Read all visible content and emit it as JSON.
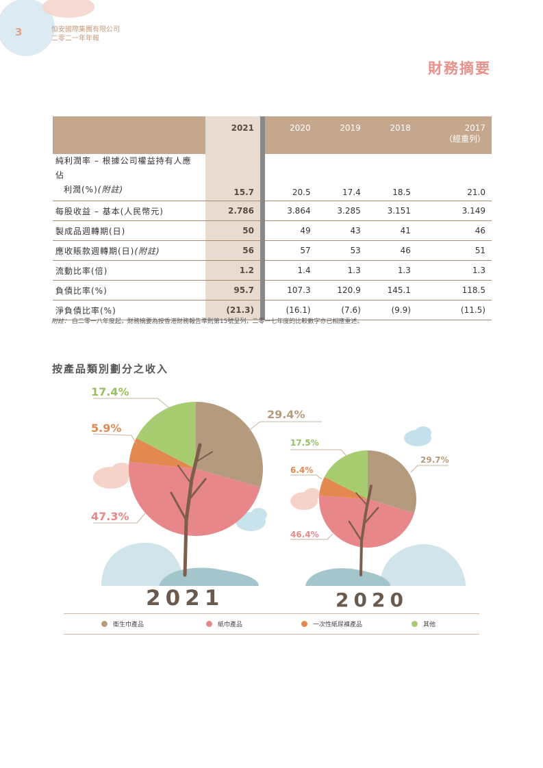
{
  "header": {
    "page_number": "3",
    "company": "恒安國際集團有限公司",
    "report": "二零二一年年報",
    "title": "財務摘要"
  },
  "table": {
    "headers": [
      "2021",
      "2020",
      "2019",
      "2018",
      "2017"
    ],
    "restated": "（經重列）",
    "rows": [
      {
        "label1": "純利潤率 – 根據公司權益持有人應佔",
        "label2": "利潤(%)",
        "note": "(附註)",
        "values": [
          "15.7",
          "20.5",
          "17.4",
          "18.5",
          "21.0"
        ]
      },
      {
        "label1": "每股收益 – 基本(人民幣元)",
        "values": [
          "2.786",
          "3.864",
          "3.285",
          "3.151",
          "3.149"
        ]
      },
      {
        "label1": "製成品週轉期(日)",
        "values": [
          "50",
          "49",
          "43",
          "41",
          "46"
        ]
      },
      {
        "label1": "應收賬款週轉期(日)",
        "note": "(附註)",
        "values": [
          "56",
          "57",
          "53",
          "46",
          "51"
        ]
      },
      {
        "label1": "流動比率(倍)",
        "values": [
          "1.2",
          "1.4",
          "1.3",
          "1.3",
          "1.3"
        ]
      },
      {
        "label1": "負債比率(%)",
        "values": [
          "95.7",
          "107.3",
          "120.9",
          "145.1",
          "118.5"
        ]
      },
      {
        "label1": "淨負債比率(%)",
        "values": [
          "(21.3)",
          "(16.1)",
          "(7.6)",
          "(9.9)",
          "(11.5)"
        ]
      }
    ]
  },
  "footnote": {
    "label": "附註：",
    "text": "自二零一八年度起，財務摘要為按香港財務報告準則第15號呈列，二零一七年度的比較數字亦已相應重述。"
  },
  "section_title": "按產品類別劃分之收入",
  "chart_data": [
    {
      "type": "pie",
      "title": "2021",
      "labels": [
        "衛生巾產品",
        "紙巾產品",
        "一次性紙尿褲產品",
        "其他"
      ],
      "values": [
        29.4,
        47.3,
        5.9,
        17.4
      ],
      "value_labels": [
        "29.4%",
        "47.3%",
        "5.9%",
        "17.4%"
      ],
      "colors": [
        "#b59b7e",
        "#e8878a",
        "#e3884f",
        "#a8cc72"
      ]
    },
    {
      "type": "pie",
      "title": "2020",
      "labels": [
        "衛生巾產品",
        "紙巾產品",
        "一次性紙尿褲產品",
        "其他"
      ],
      "values": [
        29.7,
        46.4,
        6.4,
        17.5
      ],
      "value_labels": [
        "29.7%",
        "46.4%",
        "6.4%",
        "17.5%"
      ],
      "colors": [
        "#b59b7e",
        "#e8878a",
        "#e3884f",
        "#a8cc72"
      ]
    }
  ],
  "legend": [
    {
      "label": "衛生巾產品",
      "color": "#b59b7e"
    },
    {
      "label": "紙巾產品",
      "color": "#e8878a"
    },
    {
      "label": "一次性紙尿褲產品",
      "color": "#e3884f"
    },
    {
      "label": "其他",
      "color": "#a8cc72"
    }
  ]
}
